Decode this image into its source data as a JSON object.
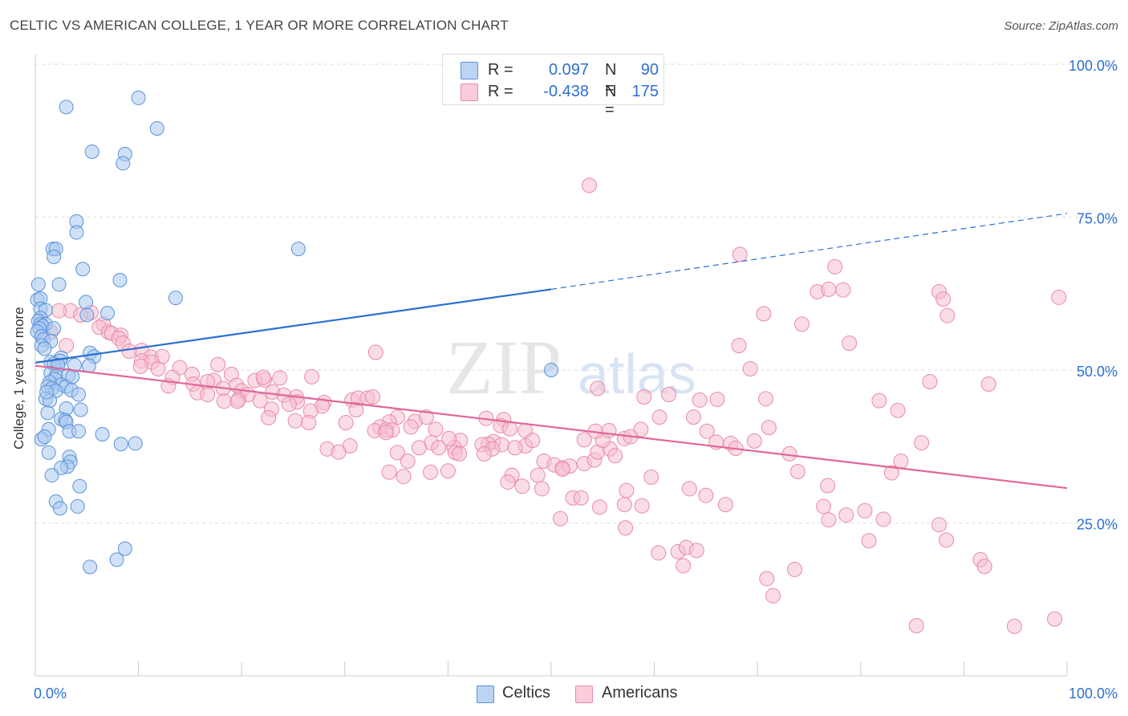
{
  "title": "CELTIC VS AMERICAN COLLEGE, 1 YEAR OR MORE CORRELATION CHART",
  "source": "Source: ZipAtlas.com",
  "watermark": {
    "zip": "ZIP",
    "atlas": "atlas"
  },
  "legend": {
    "rows": [
      {
        "r_label": "R =",
        "r_value": "0.097",
        "n_label": "N =",
        "n_value": "90"
      },
      {
        "r_label": "R =",
        "r_value": "-0.438",
        "n_label": "N =",
        "n_value": "175"
      }
    ]
  },
  "bottom_legend": {
    "celtics": "Celtics",
    "americans": "Americans"
  },
  "colors": {
    "celtics_fill": "#a9c8f0",
    "celtics_stroke": "#5a93d8",
    "celtics_line": "#2a6fd2",
    "americans_fill": "#f6bfd0",
    "americans_stroke": "#e98aa8",
    "americans_line": "#e0669a",
    "grid": "#dddddd",
    "tick_label": "#2e6fd1"
  },
  "chart_data": {
    "type": "scatter",
    "title": "CELTIC VS AMERICAN COLLEGE, 1 YEAR OR MORE CORRELATION CHART",
    "xlabel": "",
    "ylabel": "College, 1 year or more",
    "xlim": [
      0,
      100
    ],
    "ylim": [
      0,
      100
    ],
    "x_tick_labels": [
      "0.0%",
      "100.0%"
    ],
    "y_ticks": [
      25,
      50,
      75,
      100
    ],
    "y_tick_labels": [
      "25.0%",
      "50.0%",
      "75.0%",
      "100.0%"
    ],
    "grid": true,
    "series": [
      {
        "name": "Celtics",
        "R": 0.097,
        "N": 90,
        "trend": {
          "x0": 0,
          "y0": 51.2,
          "x1": 50,
          "y1": 63.2,
          "dashed_to_x": 100,
          "dashed_to_y": 75.6
        },
        "points": [
          [
            3,
            93
          ],
          [
            10,
            94.5
          ],
          [
            11.8,
            89.5
          ],
          [
            5.5,
            85.7
          ],
          [
            8.7,
            85.3
          ],
          [
            8.5,
            83.8
          ],
          [
            4,
            74.3
          ],
          [
            4,
            72.5
          ],
          [
            1.7,
            69.8
          ],
          [
            2,
            69.8
          ],
          [
            1.8,
            68.5
          ],
          [
            25.5,
            69.8
          ],
          [
            4.6,
            66.5
          ],
          [
            8.2,
            64.7
          ],
          [
            2.3,
            64
          ],
          [
            0.3,
            64
          ],
          [
            13.6,
            61.8
          ],
          [
            0.2,
            61.5
          ],
          [
            0.5,
            61.7
          ],
          [
            4.9,
            61.1
          ],
          [
            0.5,
            60
          ],
          [
            1,
            59.8
          ],
          [
            7,
            59.3
          ],
          [
            5,
            59
          ],
          [
            0.5,
            58.5
          ],
          [
            0.3,
            58
          ],
          [
            0.5,
            57.5
          ],
          [
            1,
            57.5
          ],
          [
            0.7,
            57.2
          ],
          [
            0.4,
            56.8
          ],
          [
            1.8,
            56.8
          ],
          [
            0.2,
            56.3
          ],
          [
            0.6,
            55.5
          ],
          [
            0.8,
            55
          ],
          [
            1.5,
            54.7
          ],
          [
            0.6,
            54
          ],
          [
            0.9,
            53.5
          ],
          [
            5.3,
            52.8
          ],
          [
            5.7,
            52.2
          ],
          [
            2.5,
            52
          ],
          [
            2.4,
            51.5
          ],
          [
            1.5,
            51.3
          ],
          [
            1.8,
            51
          ],
          [
            2.2,
            50.8
          ],
          [
            3.8,
            50.8
          ],
          [
            5.2,
            50.7
          ],
          [
            1.5,
            49.5
          ],
          [
            2,
            49
          ],
          [
            3.2,
            49.1
          ],
          [
            1.9,
            48.5
          ],
          [
            1.4,
            48
          ],
          [
            2.5,
            47.6
          ],
          [
            3,
            47.3
          ],
          [
            1.2,
            47.3
          ],
          [
            1.6,
            47
          ],
          [
            3.5,
            46.7
          ],
          [
            2,
            46.6
          ],
          [
            4.2,
            46
          ],
          [
            1,
            45.3
          ],
          [
            1.4,
            45
          ],
          [
            50,
            50
          ],
          [
            3,
            43.7
          ],
          [
            4.4,
            43.5
          ],
          [
            1.2,
            43
          ],
          [
            2.5,
            42
          ],
          [
            2.9,
            41.8
          ],
          [
            3,
            41.5
          ],
          [
            1.3,
            40.3
          ],
          [
            3.3,
            40
          ],
          [
            4.2,
            40
          ],
          [
            6.5,
            39.5
          ],
          [
            8.3,
            37.9
          ],
          [
            9.7,
            38
          ],
          [
            1.3,
            36.5
          ],
          [
            3.3,
            35.8
          ],
          [
            3.4,
            35
          ],
          [
            3.1,
            34.2
          ],
          [
            2.5,
            34
          ],
          [
            1.6,
            32.8
          ],
          [
            4.3,
            31
          ],
          [
            2,
            28.5
          ],
          [
            4.1,
            27.7
          ],
          [
            2.4,
            27.4
          ],
          [
            8.7,
            20.8
          ],
          [
            7.9,
            19
          ],
          [
            5.3,
            17.8
          ],
          [
            0.6,
            38.7
          ],
          [
            0.9,
            39.1
          ],
          [
            3.6,
            48.9
          ],
          [
            1.1,
            46.4
          ]
        ]
      },
      {
        "name": "Americans",
        "R": -0.438,
        "N": 175,
        "trend": {
          "x0": 0,
          "y0": 50.7,
          "x1": 100,
          "y1": 30.7
        },
        "points": [
          [
            3.4,
            59.7
          ],
          [
            2.3,
            59.7
          ],
          [
            5.4,
            59.4
          ],
          [
            4.4,
            59
          ],
          [
            6.6,
            57.5
          ],
          [
            6.2,
            57
          ],
          [
            7.1,
            56.2
          ],
          [
            1.5,
            56.2
          ],
          [
            7.4,
            56
          ],
          [
            8.3,
            55.7
          ],
          [
            8.1,
            55.2
          ],
          [
            8.5,
            54.4
          ],
          [
            3,
            54
          ],
          [
            10.3,
            53.2
          ],
          [
            9.1,
            53.1
          ],
          [
            11.2,
            52.1
          ],
          [
            12.3,
            52.2
          ],
          [
            10.3,
            51.5
          ],
          [
            11.3,
            51.3
          ],
          [
            10.2,
            50.6
          ],
          [
            11.9,
            50.2
          ],
          [
            14,
            50.4
          ],
          [
            17.7,
            50.9
          ],
          [
            15.2,
            49.3
          ],
          [
            19,
            49.3
          ],
          [
            13.3,
            48.8
          ],
          [
            17.3,
            48.3
          ],
          [
            21.3,
            48.3
          ],
          [
            22.2,
            48.4
          ],
          [
            22.1,
            48.8
          ],
          [
            23.7,
            48.7
          ],
          [
            26.8,
            48.9
          ],
          [
            16.7,
            48.1
          ],
          [
            15.3,
            47.7
          ],
          [
            19.5,
            47.5
          ],
          [
            12.9,
            47.4
          ],
          [
            18.2,
            47
          ],
          [
            20,
            46.6
          ],
          [
            15.7,
            46.3
          ],
          [
            16.7,
            46
          ],
          [
            23,
            46.4
          ],
          [
            20.6,
            46
          ],
          [
            24.1,
            45.9
          ],
          [
            19.7,
            45.2
          ],
          [
            21.8,
            45
          ],
          [
            25.3,
            45.6
          ],
          [
            25.4,
            44.8
          ],
          [
            24.6,
            44.4
          ],
          [
            28,
            44.7
          ],
          [
            27.8,
            44.1
          ],
          [
            30.7,
            45.1
          ],
          [
            31.3,
            45.4
          ],
          [
            32.2,
            45.4
          ],
          [
            32.7,
            45.6
          ],
          [
            18.3,
            44.9
          ],
          [
            19.6,
            44.9
          ],
          [
            31.1,
            43.5
          ],
          [
            22.9,
            43.6
          ],
          [
            26.7,
            43.3
          ],
          [
            22.6,
            42.2
          ],
          [
            25.2,
            41.7
          ],
          [
            35.1,
            42.3
          ],
          [
            34.3,
            41.5
          ],
          [
            36.8,
            41.6
          ],
          [
            36.4,
            40.7
          ],
          [
            37.9,
            42.3
          ],
          [
            43.7,
            42.1
          ],
          [
            30.1,
            41.4
          ],
          [
            33.4,
            40.7
          ],
          [
            32.9,
            40.1
          ],
          [
            34,
            40.2
          ],
          [
            34.6,
            40.2
          ],
          [
            38.8,
            40.3
          ],
          [
            45.4,
            41.9
          ],
          [
            45.1,
            40.9
          ],
          [
            44.4,
            38.3
          ],
          [
            46,
            40.4
          ],
          [
            47.5,
            40.1
          ],
          [
            47.5,
            37.6
          ],
          [
            48.2,
            38.5
          ],
          [
            41.2,
            38.5
          ],
          [
            38.4,
            38.1
          ],
          [
            43.9,
            37.9
          ],
          [
            45.2,
            37.8
          ],
          [
            46.5,
            37.3
          ],
          [
            37.2,
            37.3
          ],
          [
            39.1,
            37.3
          ],
          [
            40.6,
            37.3
          ],
          [
            43.3,
            37.8
          ],
          [
            44.3,
            37.1
          ],
          [
            43.5,
            36.3
          ],
          [
            35.1,
            36.5
          ],
          [
            28.3,
            37.1
          ],
          [
            30.5,
            37.6
          ],
          [
            36.1,
            35.1
          ],
          [
            40,
            33.5
          ],
          [
            34.3,
            33.3
          ],
          [
            38.3,
            33.3
          ],
          [
            35.7,
            32.6
          ],
          [
            46.2,
            32.8
          ],
          [
            48.7,
            32.8
          ],
          [
            45.8,
            31.7
          ],
          [
            47.2,
            31
          ],
          [
            49.3,
            35.1
          ],
          [
            50.3,
            34.5
          ],
          [
            51.1,
            34
          ],
          [
            51.8,
            34.3
          ],
          [
            53.2,
            34.7
          ],
          [
            54.2,
            35.3
          ],
          [
            54.5,
            36.6
          ],
          [
            55.7,
            37.1
          ],
          [
            56.2,
            36
          ],
          [
            55,
            38.5
          ],
          [
            53.2,
            38.6
          ],
          [
            54.3,
            40
          ],
          [
            55.6,
            40.1
          ],
          [
            57.1,
            38.8
          ],
          [
            57.7,
            39.1
          ],
          [
            58.7,
            40.3
          ],
          [
            60.5,
            42.3
          ],
          [
            63.8,
            42.3
          ],
          [
            65.1,
            40
          ],
          [
            66,
            38.2
          ],
          [
            67.4,
            38
          ],
          [
            67.9,
            37.2
          ],
          [
            69.7,
            38.4
          ],
          [
            71.1,
            40.6
          ],
          [
            73.1,
            36.3
          ],
          [
            73.9,
            33.4
          ],
          [
            76.4,
            27.7
          ],
          [
            78.6,
            26.3
          ],
          [
            80.4,
            27
          ],
          [
            76.9,
            25.5
          ],
          [
            82.2,
            25.6
          ],
          [
            83,
            33.2
          ],
          [
            85.9,
            38.1
          ],
          [
            83.6,
            43.4
          ],
          [
            81.8,
            45
          ],
          [
            70.8,
            45.3
          ],
          [
            66.1,
            45.2
          ],
          [
            64.4,
            45.1
          ],
          [
            59,
            45.6
          ],
          [
            54.5,
            47
          ],
          [
            61.4,
            46
          ],
          [
            69.3,
            50.2
          ],
          [
            68.2,
            54
          ],
          [
            78.9,
            54.4
          ],
          [
            74.3,
            57.5
          ],
          [
            70.6,
            59.2
          ],
          [
            75.8,
            62.8
          ],
          [
            76.9,
            63.2
          ],
          [
            78.3,
            63.1
          ],
          [
            77.5,
            66.9
          ],
          [
            68.3,
            68.9
          ],
          [
            87.6,
            62.8
          ],
          [
            88,
            61.6
          ],
          [
            88.4,
            58.9
          ],
          [
            99.2,
            61.9
          ],
          [
            86.7,
            48.1
          ],
          [
            92.4,
            47.7
          ],
          [
            57.1,
            28
          ],
          [
            54.7,
            27.6
          ],
          [
            51.1,
            33.8
          ],
          [
            49.1,
            30.6
          ],
          [
            52.1,
            29.1
          ],
          [
            57.3,
            30.3
          ],
          [
            58.8,
            27.8
          ],
          [
            59.7,
            32.5
          ],
          [
            60.4,
            20.1
          ],
          [
            62.3,
            20.3
          ],
          [
            63.1,
            21
          ],
          [
            64.1,
            20.5
          ],
          [
            62.8,
            18
          ],
          [
            70.9,
            15.9
          ],
          [
            71.5,
            13.1
          ],
          [
            73.6,
            17.4
          ],
          [
            76.8,
            31.1
          ],
          [
            83.9,
            35.1
          ],
          [
            88.3,
            22.2
          ],
          [
            87.6,
            24.7
          ],
          [
            91.6,
            19
          ],
          [
            92,
            17.9
          ],
          [
            85.4,
            8.2
          ],
          [
            94.9,
            8.1
          ],
          [
            98.8,
            9.3
          ],
          [
            52.9,
            29.1
          ],
          [
            57.2,
            24.2
          ],
          [
            50.9,
            25.7
          ],
          [
            63.4,
            30.6
          ],
          [
            65,
            29.5
          ],
          [
            66.9,
            28
          ],
          [
            80.8,
            22.1
          ],
          [
            53.7,
            80.2
          ],
          [
            33,
            52.9
          ],
          [
            34,
            39.8
          ],
          [
            40.1,
            38.8
          ],
          [
            29.4,
            36.6
          ],
          [
            40.7,
            36.5
          ],
          [
            41.1,
            36.3
          ],
          [
            26.5,
            41.4
          ]
        ]
      }
    ]
  }
}
